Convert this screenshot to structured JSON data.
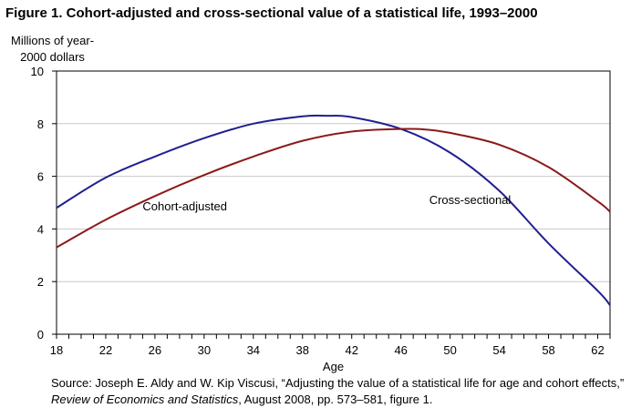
{
  "figure": {
    "title": "Figure 1. Cohort-adjusted and cross-sectional value of a statistical life, 1993–2000"
  },
  "chart_data": {
    "type": "line",
    "title": "Figure 1. Cohort-adjusted and cross-sectional value of a statistical life, 1993–2000",
    "xlabel": "Age",
    "ylabel_line1": "Millions of year-",
    "ylabel_line2": "2000 dollars",
    "xlim": [
      18,
      63
    ],
    "ylim": [
      0,
      10
    ],
    "xticks": [
      18,
      22,
      26,
      30,
      34,
      38,
      42,
      46,
      50,
      54,
      58,
      62
    ],
    "yticks": [
      0,
      2,
      4,
      6,
      8,
      10
    ],
    "grid": "horizontal",
    "series": [
      {
        "name": "Cross-sectional",
        "color": "#1f1f8f",
        "x": [
          18,
          22,
          26,
          30,
          34,
          38,
          40,
          42,
          46,
          50,
          54,
          58,
          62,
          63
        ],
        "y": [
          4.8,
          5.95,
          6.75,
          7.45,
          8.0,
          8.28,
          8.3,
          8.25,
          7.8,
          6.9,
          5.45,
          3.45,
          1.65,
          1.1
        ]
      },
      {
        "name": "Cohort-adjusted",
        "color": "#8b1a1a",
        "x": [
          18,
          22,
          26,
          30,
          34,
          38,
          42,
          46,
          48,
          50,
          54,
          58,
          62,
          63
        ],
        "y": [
          3.3,
          4.35,
          5.25,
          6.05,
          6.75,
          7.35,
          7.7,
          7.8,
          7.78,
          7.65,
          7.2,
          6.35,
          5.05,
          4.65
        ]
      }
    ],
    "annotations": [
      {
        "text": "Cohort-adjusted",
        "x": 25,
        "y": 4.7
      },
      {
        "text": "Cross-sectional",
        "x": 48.3,
        "y": 4.95
      }
    ]
  },
  "source": {
    "prefix": "Source: Joseph E. Aldy and W. Kip Viscusi, “Adjusting the value of a statistical life for age and cohort effects,” ",
    "journal": "Review of Economics and Statistics",
    "suffix": ", August 2008, pp. 573–581, figure 1."
  }
}
